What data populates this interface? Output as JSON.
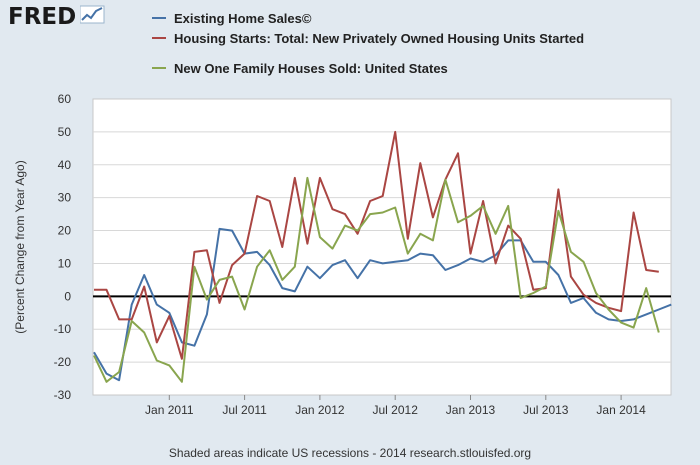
{
  "branding": {
    "logo_text": "FRED",
    "logo_icon": "chart-line-icon"
  },
  "legend": [
    {
      "label": "Existing Home Sales©",
      "color": "#4572a7"
    },
    {
      "label": "Housing Starts: Total: New Privately Owned Housing Units Started",
      "color": "#aa4643"
    },
    {
      "label": "New One Family Houses Sold: United States",
      "color": "#89a54e"
    }
  ],
  "footer": "Shaded areas indicate US recessions - 2014 research.stlouisfed.org",
  "chart_data": {
    "type": "line",
    "title": "",
    "xlabel": "",
    "ylabel": "(Percent Change from Year Ago)",
    "ylim": [
      -30,
      60
    ],
    "yticks": [
      -30,
      -20,
      -10,
      0,
      10,
      20,
      30,
      40,
      50,
      60
    ],
    "start": "2010-07",
    "xticks": [
      {
        "label": "Jan 2011",
        "index": 6
      },
      {
        "label": "Jul 2011",
        "index": 12
      },
      {
        "label": "Jan 2012",
        "index": 18
      },
      {
        "label": "Jul 2012",
        "index": 24
      },
      {
        "label": "Jan 2013",
        "index": 30
      },
      {
        "label": "Jul 2013",
        "index": 36
      },
      {
        "label": "Jan 2014",
        "index": 42
      }
    ],
    "series": [
      {
        "name": "Existing Home Sales©",
        "color": "#4572a7",
        "values": [
          -17,
          -23.5,
          -25.5,
          -2.5,
          6.5,
          -2.5,
          -5,
          -14,
          -15,
          -5.5,
          20.5,
          20,
          13,
          13.5,
          9.5,
          2.5,
          1.5,
          9,
          5.5,
          9.5,
          11,
          5.5,
          11,
          10,
          10.5,
          11,
          13,
          12.5,
          8,
          9.5,
          11.5,
          10.5,
          12.5,
          17,
          17,
          10.5,
          10.5,
          6.5,
          -2,
          -0.5,
          -5,
          -7,
          -7.5,
          -7,
          -5.5,
          -4,
          -2.5
        ]
      },
      {
        "name": "Housing Starts: Total: New Privately Owned Housing Units Started",
        "color": "#aa4643",
        "values": [
          2,
          2,
          -7,
          -7,
          3,
          -14,
          -6,
          -19,
          13.5,
          14,
          -2,
          9.5,
          13,
          30.5,
          29,
          15,
          36,
          16,
          36,
          26.5,
          25,
          19,
          29,
          30.5,
          50,
          17.5,
          40.5,
          24,
          35.5,
          43.5,
          13,
          29,
          10,
          21.5,
          17.5,
          2,
          2.5,
          32.5,
          6,
          0.5,
          -2,
          -3.5,
          -4.5,
          25.5,
          8,
          7.5
        ]
      },
      {
        "name": "New One Family Houses Sold: United States",
        "color": "#89a54e",
        "values": [
          -18,
          -26,
          -23,
          -7.5,
          -11,
          -19.5,
          -21,
          -26,
          9,
          -1,
          5,
          6,
          -4,
          9,
          14,
          5,
          9,
          36,
          18,
          14.5,
          21.5,
          20,
          25,
          25.5,
          27,
          13,
          19,
          17,
          35.5,
          22.5,
          24.5,
          27.5,
          19,
          27.5,
          -0.5,
          1,
          3,
          26,
          13.5,
          10.5,
          1,
          -4,
          -8,
          -9.5,
          2.5,
          -11
        ]
      }
    ]
  }
}
